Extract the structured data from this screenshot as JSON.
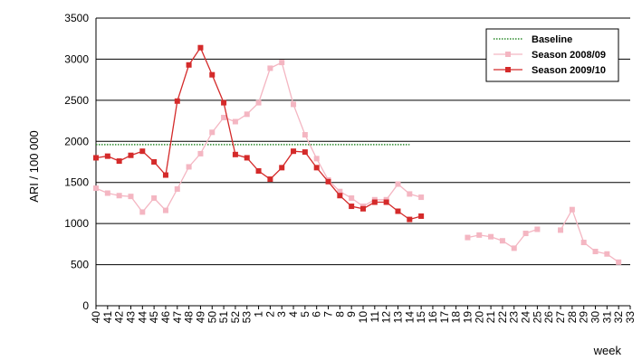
{
  "chart_data": {
    "type": "line",
    "title": "",
    "xlabel": "week",
    "ylabel": "ARI / 100 000",
    "ylim": [
      0,
      3500
    ],
    "yticks": [
      "0",
      "500",
      "1000",
      "1500",
      "2000",
      "2500",
      "3000",
      "3500"
    ],
    "grid": "horizontal",
    "legend_position": "top-right",
    "categories": [
      "40",
      "41",
      "42",
      "43",
      "44",
      "45",
      "46",
      "47",
      "48",
      "49",
      "50",
      "51",
      "52",
      "53",
      "1",
      "2",
      "3",
      "4",
      "5",
      "6",
      "7",
      "8",
      "9",
      "10",
      "11",
      "12",
      "13",
      "14",
      "15",
      "16",
      "17",
      "18",
      "19",
      "20",
      "21",
      "22",
      "23",
      "24",
      "25",
      "26",
      "27",
      "28",
      "29",
      "30",
      "31",
      "32",
      "33"
    ],
    "series": [
      {
        "name": "Baseline",
        "color": "#2e8b2e",
        "style": "dotted",
        "marker": "none",
        "values": [
          1960,
          1960,
          1960,
          1960,
          1960,
          1960,
          1960,
          1960,
          1960,
          1960,
          1960,
          1960,
          1960,
          1960,
          1960,
          1960,
          1960,
          1960,
          1960,
          1960,
          1960,
          1960,
          1960,
          1960,
          1960,
          1960,
          1960,
          1960,
          null,
          null,
          null,
          null,
          null,
          null,
          null,
          null,
          null,
          null,
          null,
          null,
          null,
          null,
          null,
          null,
          null,
          null,
          null
        ]
      },
      {
        "name": "Season 2008/09",
        "color": "#f4b6c2",
        "style": "solid",
        "marker": "square",
        "values": [
          1430,
          1370,
          1340,
          1330,
          1140,
          1310,
          1160,
          1420,
          1690,
          1850,
          2110,
          2290,
          2240,
          2330,
          2470,
          2890,
          2960,
          2450,
          2080,
          1790,
          1530,
          1390,
          1310,
          1210,
          1290,
          1290,
          1480,
          1360,
          1320,
          null,
          null,
          null,
          830,
          860,
          840,
          790,
          700,
          880,
          930,
          null,
          920,
          1170,
          770,
          660,
          630,
          530,
          null
        ]
      },
      {
        "name": "Season 2009/10",
        "color": "#d42a2a",
        "style": "solid",
        "marker": "square",
        "values": [
          1800,
          1820,
          1760,
          1830,
          1880,
          1750,
          1590,
          2490,
          2930,
          3140,
          2810,
          2470,
          1840,
          1800,
          1640,
          1540,
          1680,
          1880,
          1870,
          1680,
          1510,
          1340,
          1210,
          1180,
          1260,
          1260,
          1150,
          1050,
          1090,
          null,
          null,
          null,
          null,
          null,
          null,
          null,
          null,
          null,
          null,
          null,
          null,
          null,
          null,
          null,
          null,
          null,
          null
        ]
      }
    ]
  }
}
